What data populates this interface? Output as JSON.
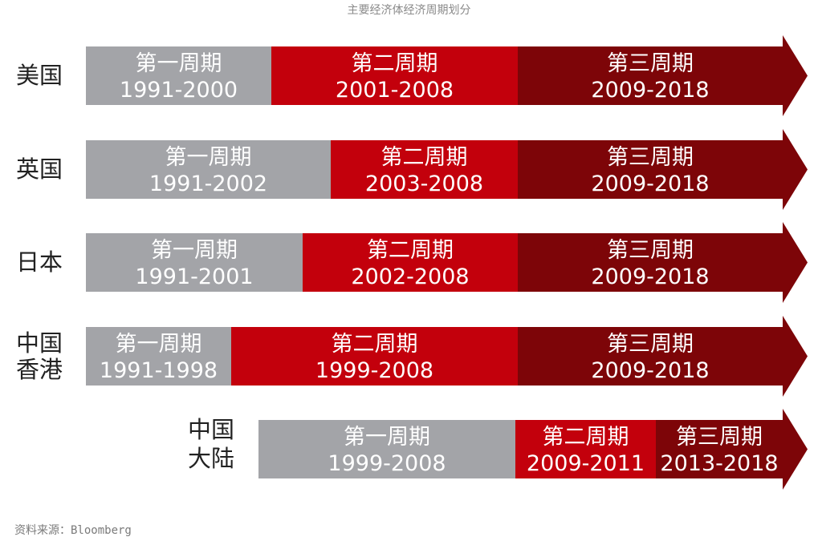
{
  "title": "主要经济体经济周期划分",
  "source": "资料来源：Bloomberg",
  "colors": {
    "period1": "#a3a4a8",
    "period2": "#c3000c",
    "period3": "#7d0508"
  },
  "chart_data": {
    "type": "timeline",
    "title": "主要经济体经济周期划分",
    "series": [
      {
        "name_lines": [
          "美国"
        ],
        "segments": [
          {
            "label": "第一周期",
            "range": "1991-2000",
            "start": 1991,
            "end": 2000
          },
          {
            "label": "第二周期",
            "range": "2001-2008",
            "start": 2001,
            "end": 2008
          },
          {
            "label": "第三周期",
            "range": "2009-2018",
            "start": 2009,
            "end": 2018
          }
        ]
      },
      {
        "name_lines": [
          "英国"
        ],
        "segments": [
          {
            "label": "第一周期",
            "range": "1991-2002",
            "start": 1991,
            "end": 2002
          },
          {
            "label": "第二周期",
            "range": "2003-2008",
            "start": 2003,
            "end": 2008
          },
          {
            "label": "第三周期",
            "range": "2009-2018",
            "start": 2009,
            "end": 2018
          }
        ]
      },
      {
        "name_lines": [
          "日本"
        ],
        "segments": [
          {
            "label": "第一周期",
            "range": "1991-2001",
            "start": 1991,
            "end": 2001
          },
          {
            "label": "第二周期",
            "range": "2002-2008",
            "start": 2002,
            "end": 2008
          },
          {
            "label": "第三周期",
            "range": "2009-2018",
            "start": 2009,
            "end": 2018
          }
        ]
      },
      {
        "name_lines": [
          "中国",
          "香港"
        ],
        "segments": [
          {
            "label": "第一周期",
            "range": "1991-1998",
            "start": 1991,
            "end": 1998
          },
          {
            "label": "第二周期",
            "range": "1999-2008",
            "start": 1999,
            "end": 2008
          },
          {
            "label": "第三周期",
            "range": "2009-2018",
            "start": 2009,
            "end": 2018
          }
        ]
      },
      {
        "name_lines": [
          "中国",
          "大陆"
        ],
        "segments": [
          {
            "label": "第一周期",
            "range": "1999-2008",
            "start": 1999,
            "end": 2008
          },
          {
            "label": "第二周期",
            "range": "2009-2011",
            "start": 2009,
            "end": 2011
          },
          {
            "label": "第三周期",
            "range": "2013-2018",
            "start": 2013,
            "end": 2018
          }
        ]
      }
    ]
  }
}
